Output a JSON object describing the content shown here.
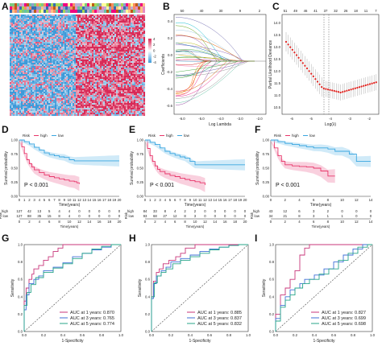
{
  "colors": {
    "high": "#e8366a",
    "low": "#3aa6e0",
    "high_band": "#f4a9c3",
    "low_band": "#a9d8f2",
    "auc1": "#c8357a",
    "auc3": "#3f6fd6",
    "auc5": "#27a58a",
    "heat_red": "#d82a57",
    "heat_blue": "#3e9ad9",
    "cv_point": "#e0201c"
  },
  "panel_labels": [
    "A",
    "B",
    "C",
    "D",
    "E",
    "F",
    "G",
    "H",
    "I"
  ],
  "heatmap": {
    "name": "risk-heatmap",
    "legend_ticks": [
      "4",
      "2",
      "0",
      "-2",
      "-4"
    ]
  },
  "lasso_coef": {
    "type": "line",
    "xlabel": "Log Lambda",
    "ylabel": "Coefficients",
    "top_ticks": [
      "50",
      "40",
      "30",
      "9",
      "2"
    ],
    "x_ticks": [
      "-6.0",
      "-5.0",
      "-4.0",
      "-3.0",
      "-2.0"
    ],
    "y_ticks": [
      "0.4",
      "0.2",
      "0.0",
      "-0.2",
      "-0.4",
      "-0.6"
    ]
  },
  "lasso_cv": {
    "type": "scatter",
    "xlabel": "Log(λ)",
    "ylabel": "Partial Likelihood Deviance",
    "top_ticks": [
      "51",
      "49",
      "46",
      "41",
      "37",
      "32",
      "26",
      "18",
      "11",
      "7"
    ],
    "x_ticks": [
      "-6",
      "-5",
      "-4",
      "-3",
      "-2"
    ],
    "y_ticks": [
      "14.0",
      "13.5",
      "13.0",
      "12.5",
      "12.0",
      "11.5",
      "11.0",
      "10.5"
    ]
  },
  "survival": [
    {
      "name": "D",
      "type": "line",
      "legend_title": "Risk",
      "legend": [
        "high",
        "low"
      ],
      "xlabel": "Time(years)",
      "ylabel": "Survival probability",
      "pvalue": "P < 0.001",
      "x_ticks": [
        "0",
        "1",
        "2",
        "3",
        "4",
        "5",
        "6",
        "7",
        "8",
        "9",
        "10",
        "11",
        "12",
        "13",
        "14",
        "15",
        "16",
        "17",
        "18",
        "19",
        "20"
      ],
      "y_ticks": [
        "1.00",
        "0.75",
        "0.50",
        "0.25",
        "0.00"
      ],
      "risk_table": {
        "x_ticks": [
          "0",
          "2",
          "4",
          "6",
          "8",
          "10",
          "12",
          "14",
          "16",
          "18",
          "20"
        ],
        "high": [
          "127",
          "42",
          "13",
          "5",
          "4",
          "4",
          "0",
          "0",
          "0",
          "0",
          "0"
        ],
        "low": [
          "127",
          "88",
          "35",
          "15",
          "8",
          "4",
          "0",
          "0",
          "0",
          "0",
          "0"
        ]
      }
    },
    {
      "name": "E",
      "type": "line",
      "legend_title": "Risk",
      "legend": [
        "high",
        "low"
      ],
      "xlabel": "Time(years)",
      "ylabel": "Survival probability",
      "pvalue": "P < 0.001",
      "x_ticks": [
        "0",
        "1",
        "2",
        "3",
        "4",
        "5",
        "6",
        "7",
        "8",
        "9",
        "10",
        "11",
        "12",
        "13",
        "14",
        "15",
        "16",
        "17",
        "18",
        "19",
        "20"
      ],
      "y_ticks": [
        "1.00",
        "0.75",
        "0.50",
        "0.25",
        "0.00"
      ],
      "risk_table": {
        "x_ticks": [
          "0",
          "2",
          "4",
          "6",
          "8",
          "10",
          "12",
          "14",
          "16",
          "18",
          "20"
        ],
        "high": [
          "84",
          "33",
          "8",
          "4",
          "2",
          "2",
          "0",
          "0",
          "0",
          "0",
          "0"
        ],
        "low": [
          "93",
          "68",
          "27",
          "12",
          "8",
          "3",
          "0",
          "0",
          "0",
          "0",
          "0"
        ]
      }
    },
    {
      "name": "F",
      "type": "line",
      "legend_title": "Risk",
      "legend": [
        "high",
        "low"
      ],
      "xlabel": "Time(years)",
      "ylabel": "Survival probability",
      "pvalue": "P < 0.001",
      "x_ticks": [
        "0",
        "2",
        "4",
        "6",
        "8",
        "10",
        "12",
        "14"
      ],
      "y_ticks": [
        "1.00",
        "0.75",
        "0.50",
        "0.25",
        "0.00"
      ],
      "risk_table": {
        "x_ticks": [
          "0",
          "2",
          "4",
          "6",
          "8",
          "10",
          "12",
          "14"
        ],
        "high": [
          "43",
          "12",
          "6",
          "3",
          "2",
          "0",
          "0",
          "0"
        ],
        "low": [
          "34",
          "21",
          "8",
          "3",
          "1",
          "1",
          "0",
          "0"
        ]
      }
    }
  ],
  "chart_data": [
    {
      "name": "D",
      "type": "line",
      "x_range": [
        0,
        20
      ],
      "y_range": [
        0,
        1
      ],
      "series": [
        {
          "name": "high",
          "x": [
            0,
            0.5,
            1,
            1.5,
            2,
            2.5,
            3,
            4,
            5,
            6,
            7,
            8,
            9,
            10,
            11,
            11.5,
            12
          ],
          "y": [
            1.0,
            0.88,
            0.76,
            0.65,
            0.58,
            0.52,
            0.47,
            0.42,
            0.38,
            0.35,
            0.33,
            0.31,
            0.29,
            0.27,
            0.26,
            0.24,
            0.22
          ]
        },
        {
          "name": "low",
          "x": [
            0,
            1,
            2,
            3,
            4,
            5,
            6,
            7,
            8,
            9,
            10,
            11,
            12,
            13,
            14,
            15,
            16,
            17,
            18,
            19,
            20
          ],
          "y": [
            1.0,
            0.97,
            0.93,
            0.87,
            0.82,
            0.77,
            0.74,
            0.72,
            0.7,
            0.69,
            0.65,
            0.63,
            0.63,
            0.63,
            0.63,
            0.63,
            0.63,
            0.63,
            0.63,
            0.63,
            0.63
          ]
        }
      ]
    },
    {
      "name": "E",
      "type": "line",
      "x_range": [
        0,
        20
      ],
      "y_range": [
        0,
        1
      ],
      "series": [
        {
          "name": "high",
          "x": [
            0,
            0.5,
            1,
            1.5,
            2,
            2.5,
            3,
            4,
            5,
            6,
            7,
            8,
            9,
            10,
            11,
            12
          ],
          "y": [
            1.0,
            0.85,
            0.72,
            0.62,
            0.54,
            0.48,
            0.44,
            0.4,
            0.37,
            0.35,
            0.32,
            0.3,
            0.28,
            0.26,
            0.24,
            0.2
          ]
        },
        {
          "name": "low",
          "x": [
            0,
            1,
            2,
            3,
            4,
            5,
            6,
            7,
            8,
            9,
            10,
            11,
            12,
            13,
            14,
            15,
            16,
            17,
            18,
            19,
            20
          ],
          "y": [
            1.0,
            0.96,
            0.92,
            0.86,
            0.8,
            0.76,
            0.73,
            0.7,
            0.68,
            0.62,
            0.56,
            0.56,
            0.56,
            0.56,
            0.56,
            0.56,
            0.56,
            0.56,
            0.56,
            0.56,
            0.56
          ]
        }
      ]
    },
    {
      "name": "F",
      "type": "line",
      "x_range": [
        0,
        14
      ],
      "y_range": [
        0,
        1
      ],
      "series": [
        {
          "name": "high",
          "x": [
            0,
            0.5,
            1,
            1.5,
            2,
            3,
            4,
            5,
            6,
            7,
            8,
            9
          ],
          "y": [
            1.0,
            0.86,
            0.72,
            0.62,
            0.56,
            0.54,
            0.53,
            0.52,
            0.5,
            0.45,
            0.36,
            0.36
          ]
        },
        {
          "name": "low",
          "x": [
            0,
            1,
            2,
            3,
            4,
            5,
            6,
            7,
            8,
            9,
            10,
            11,
            12,
            13,
            14
          ],
          "y": [
            1.0,
            0.97,
            0.94,
            0.92,
            0.9,
            0.88,
            0.86,
            0.86,
            0.84,
            0.8,
            0.8,
            0.75,
            0.62,
            0.62,
            0.62
          ]
        }
      ]
    },
    {
      "name": "G",
      "type": "line",
      "xlabel": "1-Specificity",
      "ylabel": "Sensitivity",
      "x_range": [
        0,
        1
      ],
      "y_range": [
        0,
        1
      ],
      "x_ticks": [
        "0.0",
        "0.2",
        "0.4",
        "0.6",
        "0.8",
        "1.0"
      ],
      "y_ticks": [
        "0.0",
        "0.2",
        "0.4",
        "0.6",
        "0.8",
        "1.0"
      ],
      "series": [
        {
          "name": "AUC at 1 years: 0.870",
          "x": [
            0,
            0.02,
            0.05,
            0.08,
            0.1,
            0.15,
            0.2,
            0.25,
            0.3,
            0.35,
            0.4,
            0.45,
            0.5,
            0.6,
            0.7,
            0.8,
            1.0
          ],
          "y": [
            0,
            0.35,
            0.5,
            0.6,
            0.66,
            0.72,
            0.76,
            0.82,
            0.86,
            0.92,
            0.96,
            1.0,
            1.0,
            1.0,
            1.0,
            1.0,
            1.0
          ]
        },
        {
          "name": "AUC at 3 years: 0.765",
          "x": [
            0,
            0.02,
            0.05,
            0.1,
            0.15,
            0.2,
            0.3,
            0.4,
            0.5,
            0.6,
            0.7,
            0.8,
            0.9,
            1.0
          ],
          "y": [
            0,
            0.25,
            0.42,
            0.55,
            0.6,
            0.64,
            0.7,
            0.74,
            0.79,
            0.86,
            0.9,
            0.94,
            0.97,
            1.0
          ]
        },
        {
          "name": "AUC at 5 years: 0.774",
          "x": [
            0,
            0.03,
            0.07,
            0.12,
            0.2,
            0.3,
            0.4,
            0.5,
            0.6,
            0.7,
            0.8,
            0.9,
            1.0
          ],
          "y": [
            0,
            0.3,
            0.45,
            0.54,
            0.62,
            0.68,
            0.73,
            0.78,
            0.84,
            0.9,
            0.95,
            0.98,
            1.0
          ]
        }
      ]
    },
    {
      "name": "H",
      "type": "line",
      "xlabel": "1-Specificity",
      "ylabel": "Sensitivity",
      "x_range": [
        0,
        1
      ],
      "y_range": [
        0,
        1
      ],
      "x_ticks": [
        "0.0",
        "0.2",
        "0.4",
        "0.6",
        "0.8",
        "1.0"
      ],
      "y_ticks": [
        "0.0",
        "0.2",
        "0.4",
        "0.6",
        "0.8",
        "1.0"
      ],
      "series": [
        {
          "name": "AUC at 1 years: 0.885",
          "x": [
            0,
            0.02,
            0.05,
            0.08,
            0.12,
            0.18,
            0.25,
            0.3,
            0.35,
            0.45,
            0.5,
            0.6,
            0.8,
            1.0
          ],
          "y": [
            0,
            0.4,
            0.58,
            0.68,
            0.72,
            0.78,
            0.82,
            0.86,
            0.9,
            0.96,
            1.0,
            1.0,
            1.0,
            1.0
          ]
        },
        {
          "name": "AUC at 3 years: 0.837",
          "x": [
            0,
            0.02,
            0.05,
            0.1,
            0.15,
            0.2,
            0.3,
            0.4,
            0.5,
            0.6,
            0.7,
            0.8,
            0.9,
            1.0
          ],
          "y": [
            0,
            0.38,
            0.55,
            0.64,
            0.7,
            0.74,
            0.8,
            0.84,
            0.88,
            0.92,
            0.95,
            0.97,
            0.99,
            1.0
          ]
        },
        {
          "name": "AUC at 5 years: 0.832",
          "x": [
            0,
            0.03,
            0.06,
            0.1,
            0.15,
            0.22,
            0.3,
            0.4,
            0.5,
            0.6,
            0.7,
            0.8,
            0.9,
            1.0
          ],
          "y": [
            0,
            0.4,
            0.56,
            0.64,
            0.68,
            0.72,
            0.78,
            0.82,
            0.86,
            0.9,
            0.94,
            0.97,
            0.99,
            1.0
          ]
        }
      ]
    },
    {
      "name": "I",
      "type": "line",
      "xlabel": "1-Specificity",
      "ylabel": "Sensitivity",
      "x_range": [
        0,
        1
      ],
      "y_range": [
        0,
        1
      ],
      "x_ticks": [
        "0.0",
        "0.2",
        "0.4",
        "0.6",
        "0.8",
        "1.0"
      ],
      "y_ticks": [
        "0.0",
        "0.2",
        "0.4",
        "0.6",
        "0.8",
        "1.0"
      ],
      "series": [
        {
          "name": "AUC at 1 years: 0.827",
          "x": [
            0,
            0.05,
            0.1,
            0.15,
            0.2,
            0.25,
            0.3,
            0.35,
            0.4,
            0.5,
            0.6,
            0.7,
            0.8,
            1.0
          ],
          "y": [
            0,
            0.2,
            0.42,
            0.5,
            0.6,
            0.7,
            0.88,
            0.96,
            1.0,
            1.0,
            1.0,
            1.0,
            1.0,
            1.0
          ]
        },
        {
          "name": "AUC at 3 years: 0.699",
          "x": [
            0,
            0.05,
            0.1,
            0.15,
            0.2,
            0.25,
            0.3,
            0.4,
            0.5,
            0.6,
            0.7,
            0.8,
            0.9,
            1.0
          ],
          "y": [
            0,
            0.15,
            0.3,
            0.4,
            0.48,
            0.5,
            0.55,
            0.6,
            0.65,
            0.72,
            0.8,
            0.88,
            0.95,
            1.0
          ]
        },
        {
          "name": "AUC at 5 years: 0.698",
          "x": [
            0,
            0.05,
            0.1,
            0.15,
            0.2,
            0.28,
            0.35,
            0.45,
            0.55,
            0.65,
            0.75,
            0.85,
            0.95,
            1.0
          ],
          "y": [
            0,
            0.12,
            0.28,
            0.36,
            0.42,
            0.5,
            0.55,
            0.6,
            0.66,
            0.72,
            0.82,
            0.9,
            0.97,
            1.0
          ]
        }
      ]
    }
  ]
}
